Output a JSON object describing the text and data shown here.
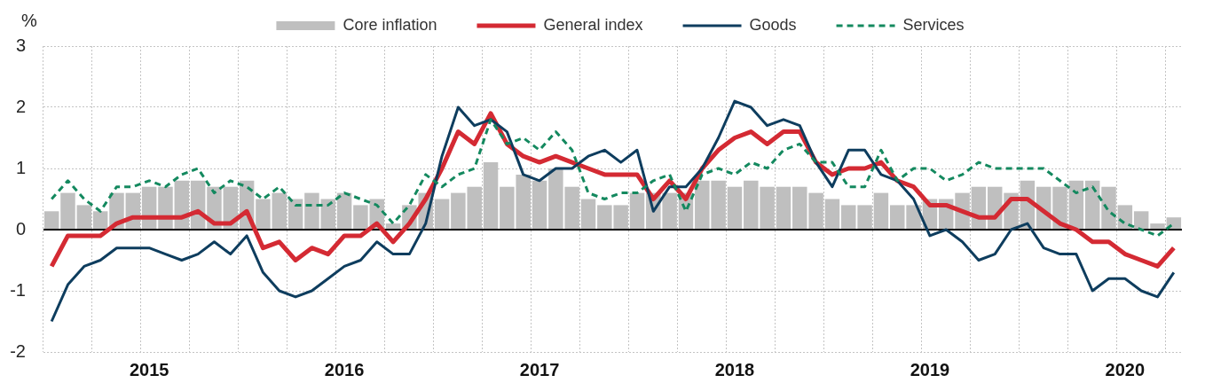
{
  "chart_data": {
    "type": "line",
    "ylabel": "%",
    "categories": [
      null,
      null,
      null,
      null,
      null,
      null,
      "2015",
      null,
      null,
      null,
      null,
      null,
      null,
      null,
      null,
      null,
      null,
      null,
      "2016",
      null,
      null,
      null,
      null,
      null,
      null,
      null,
      null,
      null,
      null,
      null,
      "2017",
      null,
      null,
      null,
      null,
      null,
      null,
      null,
      null,
      null,
      null,
      null,
      "2018",
      null,
      null,
      null,
      null,
      null,
      null,
      null,
      null,
      null,
      null,
      null,
      "2019",
      null,
      null,
      null,
      null,
      null,
      null,
      null,
      null,
      null,
      null,
      null,
      "2020",
      null,
      null,
      null
    ],
    "series": [
      {
        "name": "Core inflation",
        "type": "bar",
        "color": "#bfbfbf",
        "values": [
          0.3,
          0.6,
          0.4,
          0.3,
          0.6,
          0.6,
          0.7,
          0.7,
          0.8,
          0.8,
          0.7,
          0.7,
          0.8,
          0.5,
          0.6,
          0.5,
          0.6,
          0.5,
          0.6,
          0.4,
          0.5,
          0.1,
          0.4,
          0.6,
          0.5,
          0.6,
          0.7,
          1.1,
          0.7,
          0.9,
          0.8,
          1.0,
          0.7,
          0.5,
          0.4,
          0.4,
          0.6,
          0.6,
          0.6,
          0.6,
          0.8,
          0.8,
          0.7,
          0.8,
          0.7,
          0.7,
          0.7,
          0.6,
          0.5,
          0.4,
          0.4,
          0.6,
          0.4,
          0.4,
          0.5,
          0.5,
          0.6,
          0.7,
          0.7,
          0.6,
          0.8,
          0.7,
          0.7,
          0.8,
          0.8,
          0.7,
          0.4,
          0.3,
          0.1,
          0.2
        ]
      },
      {
        "name": "General index",
        "color": "#d42a33",
        "values": [
          -0.6,
          -0.1,
          -0.1,
          -0.1,
          0.1,
          0.2,
          0.2,
          0.2,
          0.2,
          0.3,
          0.1,
          0.1,
          0.3,
          -0.3,
          -0.2,
          -0.5,
          -0.3,
          -0.4,
          -0.1,
          -0.1,
          0.1,
          -0.2,
          0.1,
          0.5,
          1.0,
          1.6,
          1.4,
          1.9,
          1.4,
          1.2,
          1.1,
          1.2,
          1.1,
          1.0,
          0.9,
          0.9,
          0.9,
          0.5,
          0.8,
          0.5,
          1.0,
          1.3,
          1.5,
          1.6,
          1.4,
          1.6,
          1.6,
          1.1,
          0.9,
          1.0,
          1.0,
          1.1,
          0.8,
          0.7,
          0.4,
          0.4,
          0.3,
          0.2,
          0.2,
          0.5,
          0.5,
          0.3,
          0.1,
          0.0,
          -0.2,
          -0.2,
          -0.4,
          -0.5,
          -0.6,
          -0.3
        ]
      },
      {
        "name": "Goods",
        "color": "#0e3d5e",
        "values": [
          -1.5,
          -0.9,
          -0.6,
          -0.5,
          -0.3,
          -0.3,
          -0.3,
          -0.4,
          -0.5,
          -0.4,
          -0.2,
          -0.4,
          -0.1,
          -0.7,
          -1.0,
          -1.1,
          -1.0,
          -0.8,
          -0.6,
          -0.5,
          -0.2,
          -0.4,
          -0.4,
          0.1,
          1.2,
          2.0,
          1.7,
          1.8,
          1.6,
          0.9,
          0.8,
          1.0,
          1.0,
          1.2,
          1.3,
          1.1,
          1.3,
          0.3,
          0.7,
          0.7,
          1.0,
          1.5,
          2.1,
          2.0,
          1.7,
          1.8,
          1.7,
          1.1,
          0.7,
          1.3,
          1.3,
          0.9,
          0.8,
          0.5,
          -0.1,
          0.0,
          -0.2,
          -0.5,
          -0.4,
          0.0,
          0.1,
          -0.3,
          -0.4,
          -0.4,
          -1.0,
          -0.8,
          -0.8,
          -1.0,
          -1.1,
          -0.7
        ]
      },
      {
        "name": "Services",
        "color": "#14895f",
        "line_style": "dashed",
        "values": [
          0.5,
          0.8,
          0.5,
          0.3,
          0.7,
          0.7,
          0.8,
          0.7,
          0.9,
          1.0,
          0.6,
          0.8,
          0.7,
          0.5,
          0.7,
          0.4,
          0.4,
          0.4,
          0.6,
          0.5,
          0.4,
          0.1,
          0.4,
          0.9,
          0.7,
          0.9,
          1.0,
          1.8,
          1.4,
          1.5,
          1.3,
          1.6,
          1.3,
          0.6,
          0.5,
          0.6,
          0.6,
          0.8,
          0.9,
          0.3,
          0.9,
          1.0,
          0.9,
          1.1,
          1.0,
          1.3,
          1.4,
          1.1,
          1.1,
          0.7,
          0.7,
          1.3,
          0.8,
          1.0,
          1.0,
          0.8,
          0.9,
          1.1,
          1.0,
          1.0,
          1.0,
          1.0,
          0.8,
          0.6,
          0.7,
          0.3,
          0.1,
          0.0,
          -0.1,
          0.1
        ]
      }
    ],
    "ylim": [
      -2,
      3
    ],
    "yticks": [
      -2,
      -1,
      0,
      1,
      2,
      3
    ],
    "ref_lines": [
      {
        "axis": "y",
        "value": 0,
        "color": "#000000"
      }
    ],
    "grid": true,
    "legend": "top"
  }
}
